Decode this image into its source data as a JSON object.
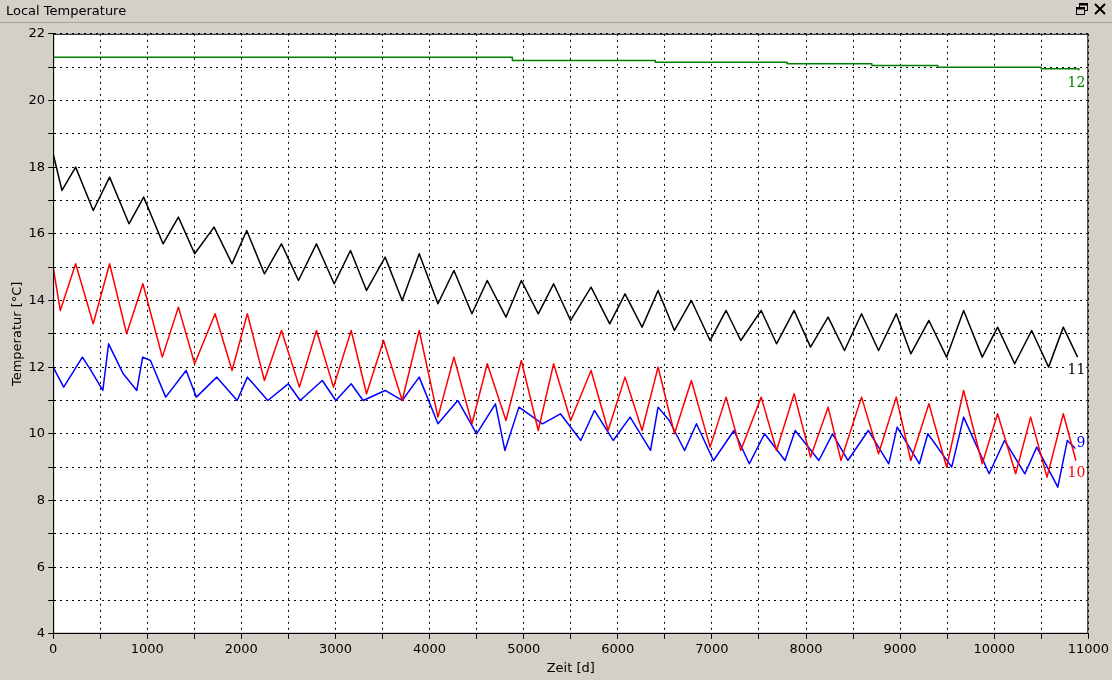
{
  "chart_data": {
    "type": "line",
    "title": "Local Temperature",
    "xlabel": "Zeit [d]",
    "ylabel": "Temperatur [°C]",
    "xlim": [
      0,
      11000
    ],
    "ylim": [
      4,
      22
    ],
    "xticks": [
      0,
      {
        "value": 500,
        "label": null
      },
      1000,
      {
        "value": 1500,
        "label": null
      },
      2000,
      {
        "value": 2500,
        "label": null
      },
      3000,
      {
        "value": 3500,
        "label": null
      },
      4000,
      {
        "value": 4500,
        "label": null
      },
      5000,
      {
        "value": 5500,
        "label": null
      },
      6000,
      {
        "value": 6500,
        "label": null
      },
      7000,
      {
        "value": 7500,
        "label": null
      },
      8000,
      {
        "value": 8500,
        "label": null
      },
      9000,
      {
        "value": 9500,
        "label": null
      },
      10000,
      {
        "value": 10500,
        "label": null
      },
      11000
    ],
    "yticks": [
      4,
      {
        "value": 5,
        "label": null
      },
      6,
      {
        "value": 7,
        "label": null
      },
      8,
      {
        "value": 9,
        "label": null
      },
      10,
      {
        "value": 11,
        "label": null
      },
      12,
      {
        "value": 13,
        "label": null
      },
      14,
      {
        "value": 15,
        "label": null
      },
      16,
      {
        "value": 17,
        "label": null
      },
      18,
      {
        "value": 19,
        "label": null
      },
      20,
      {
        "value": 21,
        "label": null
      },
      22
    ],
    "grid": true,
    "legend": false,
    "marker": "none",
    "line_style": "solid",
    "series": [
      {
        "name": "12",
        "color": "#008000",
        "type": "step",
        "x": [
          0,
          4880,
          6400,
          7800,
          8700,
          9400,
          10500,
          10900
        ],
        "values": [
          21.3,
          21.2,
          21.15,
          21.1,
          21.05,
          21.0,
          20.95,
          20.9
        ]
      },
      {
        "name": "11",
        "color": "#000000",
        "x": [
          0,
          94,
          239,
          426,
          600,
          806,
          962,
          1168,
          1331,
          1504,
          1710,
          1901,
          2057,
          2245,
          2426,
          2607,
          2798,
          2986,
          3160,
          3330,
          3528,
          3709,
          3890,
          4089,
          4259,
          4450,
          4613,
          4812,
          4975,
          5155,
          5318,
          5499,
          5716,
          5914,
          6077,
          6258,
          6428,
          6602,
          6782,
          6981,
          7151,
          7307,
          7524,
          7687,
          7874,
          8048,
          8235,
          8409,
          8590,
          8771,
          8959,
          9114,
          9306,
          9494,
          9675,
          9873,
          10036,
          10217,
          10398,
          10578,
          10734,
          10886
        ],
        "values": [
          18.4,
          17.3,
          18.0,
          16.7,
          17.7,
          16.3,
          17.1,
          15.7,
          16.5,
          15.4,
          16.2,
          15.1,
          16.1,
          14.8,
          15.7,
          14.6,
          15.7,
          14.5,
          15.5,
          14.3,
          15.3,
          14.0,
          15.4,
          13.9,
          14.9,
          13.6,
          14.6,
          13.5,
          14.6,
          13.6,
          14.5,
          13.4,
          14.4,
          13.3,
          14.2,
          13.2,
          14.3,
          13.1,
          14.0,
          12.8,
          13.7,
          12.8,
          13.7,
          12.7,
          13.7,
          12.6,
          13.5,
          12.5,
          13.6,
          12.5,
          13.6,
          12.4,
          13.4,
          12.3,
          13.7,
          12.3,
          13.2,
          12.1,
          13.1,
          12.0,
          13.2,
          12.3
        ]
      },
      {
        "name": "10",
        "color": "#ff0000",
        "x": [
          0,
          76,
          239,
          426,
          600,
          781,
          954,
          1160,
          1331,
          1504,
          1721,
          1901,
          2064,
          2245,
          2426,
          2617,
          2798,
          2979,
          3167,
          3330,
          3511,
          3709,
          3890,
          4089,
          4259,
          4450,
          4613,
          4812,
          4975,
          5155,
          5318,
          5499,
          5716,
          5897,
          6077,
          6258,
          6428,
          6602,
          6782,
          6981,
          7151,
          7307,
          7524,
          7687,
          7874,
          8048,
          8235,
          8372,
          8590,
          8771,
          8959,
          9114,
          9306,
          9494,
          9675,
          9873,
          10036,
          10228,
          10387,
          10561,
          10734,
          10868
        ],
        "values": [
          15.0,
          13.7,
          15.1,
          13.3,
          15.1,
          13.0,
          14.5,
          12.3,
          13.8,
          12.1,
          13.6,
          11.9,
          13.6,
          11.6,
          13.1,
          11.4,
          13.1,
          11.4,
          13.1,
          11.2,
          12.8,
          11.0,
          13.1,
          10.5,
          12.3,
          10.3,
          12.1,
          10.4,
          12.2,
          10.1,
          12.1,
          10.4,
          11.9,
          10.1,
          11.7,
          10.1,
          12.0,
          10.0,
          11.6,
          9.6,
          11.1,
          9.5,
          11.1,
          9.5,
          11.2,
          9.3,
          10.8,
          9.2,
          11.1,
          9.4,
          11.1,
          9.2,
          10.9,
          9.0,
          11.3,
          9.1,
          10.6,
          8.8,
          10.5,
          8.7,
          10.6,
          9.2
        ]
      },
      {
        "name": "9",
        "color": "#0000ff",
        "x": [
          0,
          112,
          311,
          401,
          528,
          589,
          745,
          889,
          951,
          1034,
          1196,
          1413,
          1522,
          1739,
          1956,
          2064,
          2281,
          2498,
          2625,
          2860,
          3004,
          3167,
          3294,
          3528,
          3709,
          3890,
          4089,
          4300,
          4500,
          4700,
          4800,
          4950,
          5200,
          5390,
          5607,
          5752,
          5951,
          6131,
          6348,
          6428,
          6547,
          6710,
          6836,
          7017,
          7234,
          7397,
          7560,
          7777,
          7885,
          8137,
          8282,
          8445,
          8662,
          8879,
          8969,
          9205,
          9295,
          9548,
          9675,
          9946,
          10109,
          10326,
          10452,
          10676,
          10777,
          10886
        ],
        "values": [
          12.0,
          11.4,
          12.3,
          11.9,
          11.3,
          12.7,
          11.8,
          11.3,
          12.3,
          12.2,
          11.1,
          11.9,
          11.1,
          11.7,
          11.0,
          11.7,
          11.0,
          11.5,
          11.0,
          11.6,
          11.0,
          11.5,
          11.0,
          11.3,
          11.0,
          11.7,
          10.3,
          11.0,
          10.0,
          10.9,
          9.5,
          10.8,
          10.3,
          10.6,
          9.8,
          10.7,
          9.8,
          10.5,
          9.5,
          10.8,
          10.4,
          9.5,
          10.3,
          9.2,
          10.1,
          9.1,
          10.0,
          9.2,
          10.1,
          9.2,
          10.0,
          9.2,
          10.1,
          9.1,
          10.2,
          9.1,
          10.0,
          9.0,
          10.5,
          8.8,
          9.8,
          8.8,
          9.6,
          8.4,
          9.8,
          9.5
        ]
      }
    ]
  }
}
